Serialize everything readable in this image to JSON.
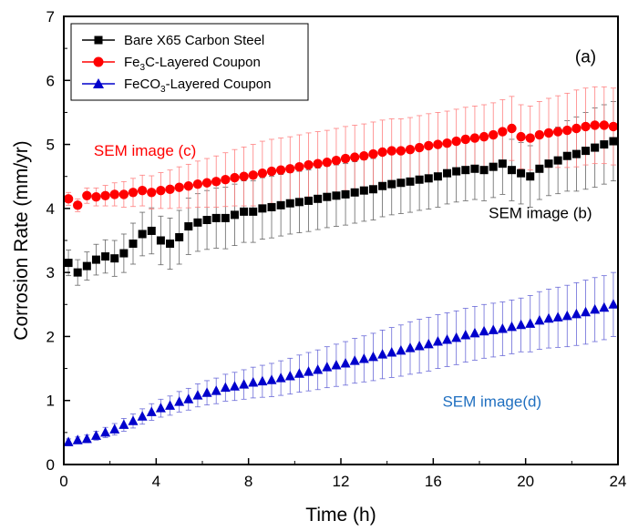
{
  "chart_data": {
    "type": "scatter",
    "title": "",
    "panel_label": "(a)",
    "xlabel": "Time (h)",
    "ylabel": "Corrosion Rate (mm/yr)",
    "xlim": [
      0,
      24
    ],
    "ylim": [
      0,
      7
    ],
    "xticks": [
      0,
      4,
      8,
      12,
      16,
      20,
      24
    ],
    "yticks": [
      0,
      1,
      2,
      3,
      4,
      5,
      6,
      7
    ],
    "grid": false,
    "legend_position": "top-left",
    "legend": [
      {
        "series": "bare",
        "label": "Bare X65 Carbon Steel"
      },
      {
        "series": "fe3c",
        "prefix": "Fe",
        "sub": "3",
        "suffix": "C-Layered Coupon"
      },
      {
        "series": "feco3",
        "prefix": "FeCO",
        "sub": "3",
        "suffix": "-Layered Coupon"
      }
    ],
    "annotations": [
      {
        "text": "SEM image (c)",
        "x": 1.3,
        "y": 4.82,
        "color": "#ff0000"
      },
      {
        "text": "SEM image (b)",
        "x": 18.4,
        "y": 3.85,
        "color": "#000000"
      },
      {
        "text": "SEM image(d)",
        "x": 16.4,
        "y": 0.9,
        "color": "#1f6fc0"
      }
    ],
    "series_points": [
      {
        "id": "bare",
        "marker": "square",
        "color": "#000000",
        "points": [
          [
            0.2,
            3.15
          ],
          [
            0.6,
            3.0
          ],
          [
            1.0,
            3.1
          ],
          [
            1.4,
            3.2
          ],
          [
            1.8,
            3.25
          ],
          [
            2.2,
            3.22
          ],
          [
            2.6,
            3.3
          ],
          [
            3.0,
            3.45
          ],
          [
            3.4,
            3.6
          ],
          [
            3.8,
            3.65
          ],
          [
            4.2,
            3.5
          ],
          [
            4.6,
            3.45
          ],
          [
            5.0,
            3.55
          ],
          [
            5.4,
            3.72
          ],
          [
            5.8,
            3.78
          ],
          [
            6.2,
            3.82
          ],
          [
            6.6,
            3.85
          ],
          [
            7.0,
            3.85
          ],
          [
            7.4,
            3.9
          ],
          [
            7.8,
            3.95
          ],
          [
            8.2,
            3.95
          ],
          [
            8.6,
            4.0
          ],
          [
            9.0,
            4.02
          ],
          [
            9.4,
            4.05
          ],
          [
            9.8,
            4.08
          ],
          [
            10.2,
            4.1
          ],
          [
            10.6,
            4.12
          ],
          [
            11.0,
            4.15
          ],
          [
            11.4,
            4.18
          ],
          [
            11.8,
            4.2
          ],
          [
            12.2,
            4.22
          ],
          [
            12.6,
            4.25
          ],
          [
            13.0,
            4.28
          ],
          [
            13.4,
            4.3
          ],
          [
            13.8,
            4.35
          ],
          [
            14.2,
            4.38
          ],
          [
            14.6,
            4.4
          ],
          [
            15.0,
            4.42
          ],
          [
            15.4,
            4.45
          ],
          [
            15.8,
            4.47
          ],
          [
            16.2,
            4.5
          ],
          [
            16.6,
            4.55
          ],
          [
            17.0,
            4.58
          ],
          [
            17.4,
            4.6
          ],
          [
            17.8,
            4.62
          ],
          [
            18.2,
            4.6
          ],
          [
            18.6,
            4.65
          ],
          [
            19.0,
            4.7
          ],
          [
            19.4,
            4.6
          ],
          [
            19.8,
            4.55
          ],
          [
            20.2,
            4.5
          ],
          [
            20.6,
            4.62
          ],
          [
            21.0,
            4.7
          ],
          [
            21.4,
            4.75
          ],
          [
            21.8,
            4.82
          ],
          [
            22.2,
            4.85
          ],
          [
            22.6,
            4.9
          ],
          [
            23.0,
            4.95
          ],
          [
            23.4,
            5.0
          ],
          [
            23.8,
            5.05
          ]
        ],
        "error": [
          0.2,
          0.2,
          0.22,
          0.24,
          0.26,
          0.28,
          0.3,
          0.32,
          0.34,
          0.36,
          0.38,
          0.4,
          0.42,
          0.44,
          0.45,
          0.46,
          0.47,
          0.48,
          0.48,
          0.48,
          0.48,
          0.48,
          0.48,
          0.48,
          0.48,
          0.48,
          0.48,
          0.48,
          0.48,
          0.48,
          0.48,
          0.48,
          0.48,
          0.48,
          0.48,
          0.48,
          0.48,
          0.48,
          0.48,
          0.48,
          0.48,
          0.48,
          0.48,
          0.48,
          0.48,
          0.48,
          0.48,
          0.48,
          0.48,
          0.48,
          0.48,
          0.48,
          0.5,
          0.52,
          0.55,
          0.58,
          0.6,
          0.62,
          0.62,
          0.62
        ]
      },
      {
        "id": "fe3c",
        "marker": "circle",
        "color": "#ff0000",
        "points": [
          [
            0.2,
            4.15
          ],
          [
            0.6,
            4.05
          ],
          [
            1.0,
            4.2
          ],
          [
            1.4,
            4.18
          ],
          [
            1.8,
            4.2
          ],
          [
            2.2,
            4.22
          ],
          [
            2.6,
            4.22
          ],
          [
            3.0,
            4.25
          ],
          [
            3.4,
            4.28
          ],
          [
            3.8,
            4.25
          ],
          [
            4.2,
            4.28
          ],
          [
            4.6,
            4.3
          ],
          [
            5.0,
            4.33
          ],
          [
            5.4,
            4.35
          ],
          [
            5.8,
            4.38
          ],
          [
            6.2,
            4.4
          ],
          [
            6.6,
            4.42
          ],
          [
            7.0,
            4.45
          ],
          [
            7.4,
            4.48
          ],
          [
            7.8,
            4.5
          ],
          [
            8.2,
            4.52
          ],
          [
            8.6,
            4.55
          ],
          [
            9.0,
            4.58
          ],
          [
            9.4,
            4.6
          ],
          [
            9.8,
            4.62
          ],
          [
            10.2,
            4.65
          ],
          [
            10.6,
            4.68
          ],
          [
            11.0,
            4.7
          ],
          [
            11.4,
            4.72
          ],
          [
            11.8,
            4.75
          ],
          [
            12.2,
            4.78
          ],
          [
            12.6,
            4.8
          ],
          [
            13.0,
            4.82
          ],
          [
            13.4,
            4.85
          ],
          [
            13.8,
            4.88
          ],
          [
            14.2,
            4.9
          ],
          [
            14.6,
            4.9
          ],
          [
            15.0,
            4.92
          ],
          [
            15.4,
            4.95
          ],
          [
            15.8,
            4.98
          ],
          [
            16.2,
            5.0
          ],
          [
            16.6,
            5.02
          ],
          [
            17.0,
            5.05
          ],
          [
            17.4,
            5.08
          ],
          [
            17.8,
            5.1
          ],
          [
            18.2,
            5.12
          ],
          [
            18.6,
            5.15
          ],
          [
            19.0,
            5.2
          ],
          [
            19.4,
            5.25
          ],
          [
            19.8,
            5.12
          ],
          [
            20.2,
            5.1
          ],
          [
            20.6,
            5.15
          ],
          [
            21.0,
            5.18
          ],
          [
            21.4,
            5.2
          ],
          [
            21.8,
            5.22
          ],
          [
            22.2,
            5.25
          ],
          [
            22.6,
            5.28
          ],
          [
            23.0,
            5.3
          ],
          [
            23.4,
            5.3
          ],
          [
            23.8,
            5.28
          ]
        ],
        "error": [
          0.1,
          0.1,
          0.12,
          0.14,
          0.16,
          0.18,
          0.2,
          0.22,
          0.24,
          0.26,
          0.28,
          0.3,
          0.32,
          0.34,
          0.36,
          0.38,
          0.4,
          0.42,
          0.44,
          0.46,
          0.48,
          0.5,
          0.5,
          0.5,
          0.5,
          0.5,
          0.5,
          0.5,
          0.5,
          0.5,
          0.5,
          0.5,
          0.5,
          0.5,
          0.5,
          0.5,
          0.5,
          0.5,
          0.5,
          0.5,
          0.5,
          0.5,
          0.5,
          0.5,
          0.5,
          0.5,
          0.5,
          0.5,
          0.5,
          0.5,
          0.5,
          0.52,
          0.54,
          0.56,
          0.58,
          0.6,
          0.6,
          0.6,
          0.6,
          0.6
        ]
      },
      {
        "id": "feco3",
        "marker": "triangle",
        "color": "#0000cc",
        "points": [
          [
            0.2,
            0.35
          ],
          [
            0.6,
            0.38
          ],
          [
            1.0,
            0.4
          ],
          [
            1.4,
            0.45
          ],
          [
            1.8,
            0.5
          ],
          [
            2.2,
            0.55
          ],
          [
            2.6,
            0.62
          ],
          [
            3.0,
            0.68
          ],
          [
            3.4,
            0.75
          ],
          [
            3.8,
            0.82
          ],
          [
            4.2,
            0.88
          ],
          [
            4.6,
            0.92
          ],
          [
            5.0,
            0.98
          ],
          [
            5.4,
            1.02
          ],
          [
            5.8,
            1.08
          ],
          [
            6.2,
            1.12
          ],
          [
            6.6,
            1.15
          ],
          [
            7.0,
            1.2
          ],
          [
            7.4,
            1.22
          ],
          [
            7.8,
            1.25
          ],
          [
            8.2,
            1.28
          ],
          [
            8.6,
            1.3
          ],
          [
            9.0,
            1.32
          ],
          [
            9.4,
            1.35
          ],
          [
            9.8,
            1.38
          ],
          [
            10.2,
            1.42
          ],
          [
            10.6,
            1.45
          ],
          [
            11.0,
            1.48
          ],
          [
            11.4,
            1.52
          ],
          [
            11.8,
            1.55
          ],
          [
            12.2,
            1.58
          ],
          [
            12.6,
            1.62
          ],
          [
            13.0,
            1.65
          ],
          [
            13.4,
            1.68
          ],
          [
            13.8,
            1.72
          ],
          [
            14.2,
            1.75
          ],
          [
            14.6,
            1.78
          ],
          [
            15.0,
            1.82
          ],
          [
            15.4,
            1.85
          ],
          [
            15.8,
            1.88
          ],
          [
            16.2,
            1.92
          ],
          [
            16.6,
            1.95
          ],
          [
            17.0,
            1.98
          ],
          [
            17.4,
            2.02
          ],
          [
            17.8,
            2.05
          ],
          [
            18.2,
            2.08
          ],
          [
            18.6,
            2.1
          ],
          [
            19.0,
            2.12
          ],
          [
            19.4,
            2.15
          ],
          [
            19.8,
            2.18
          ],
          [
            20.2,
            2.2
          ],
          [
            20.6,
            2.25
          ],
          [
            21.0,
            2.28
          ],
          [
            21.4,
            2.3
          ],
          [
            21.8,
            2.32
          ],
          [
            22.2,
            2.35
          ],
          [
            22.6,
            2.38
          ],
          [
            23.0,
            2.42
          ],
          [
            23.4,
            2.45
          ],
          [
            23.8,
            2.5
          ]
        ],
        "error": [
          0.05,
          0.05,
          0.06,
          0.07,
          0.08,
          0.09,
          0.1,
          0.11,
          0.12,
          0.13,
          0.14,
          0.15,
          0.16,
          0.17,
          0.18,
          0.19,
          0.2,
          0.21,
          0.22,
          0.23,
          0.24,
          0.25,
          0.26,
          0.27,
          0.28,
          0.29,
          0.3,
          0.31,
          0.32,
          0.33,
          0.34,
          0.35,
          0.36,
          0.37,
          0.38,
          0.39,
          0.4,
          0.41,
          0.42,
          0.42,
          0.42,
          0.42,
          0.42,
          0.42,
          0.42,
          0.42,
          0.42,
          0.42,
          0.42,
          0.42,
          0.44,
          0.45,
          0.46,
          0.47,
          0.48,
          0.49,
          0.5,
          0.5,
          0.5,
          0.5
        ]
      }
    ]
  }
}
